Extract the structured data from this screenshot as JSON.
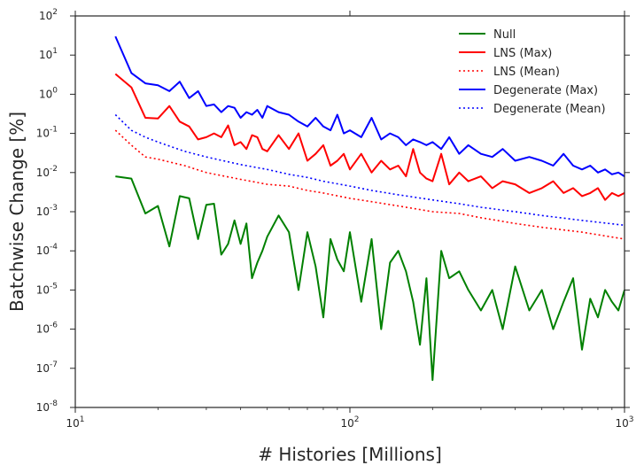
{
  "chart_data": {
    "type": "line",
    "xlabel": "# Histories [Millions]",
    "ylabel": "Batchwise Change [%]",
    "xscale": "log",
    "yscale": "log",
    "xlim": [
      10,
      1000
    ],
    "ylim": [
      1e-08,
      100
    ],
    "grid": false,
    "legend_position": "top-right",
    "x_ticks": [
      {
        "value": 10,
        "label": "10",
        "exp": "1"
      },
      {
        "value": 100,
        "label": "10",
        "exp": "2"
      },
      {
        "value": 1000,
        "label": "10",
        "exp": "3"
      }
    ],
    "y_ticks": [
      {
        "value": 1e-08,
        "label": "10",
        "exp": "-8"
      },
      {
        "value": 1e-07,
        "label": "10",
        "exp": "-7"
      },
      {
        "value": 1e-06,
        "label": "10",
        "exp": "-6"
      },
      {
        "value": 1e-05,
        "label": "10",
        "exp": "-5"
      },
      {
        "value": 0.0001,
        "label": "10",
        "exp": "-4"
      },
      {
        "value": 0.001,
        "label": "10",
        "exp": "-3"
      },
      {
        "value": 0.01,
        "label": "10",
        "exp": "-2"
      },
      {
        "value": 0.1,
        "label": "10",
        "exp": "-1"
      },
      {
        "value": 1,
        "label": "10",
        "exp": "0"
      },
      {
        "value": 10,
        "label": "10",
        "exp": "1"
      },
      {
        "value": 100,
        "label": "10",
        "exp": "2"
      }
    ],
    "series": [
      {
        "name": "Null",
        "color": "#008000",
        "style": "solid",
        "x": [
          14,
          16,
          18,
          20,
          22,
          24,
          26,
          28,
          30,
          32,
          34,
          36,
          38,
          40,
          42,
          44,
          46,
          48,
          50,
          55,
          60,
          65,
          70,
          75,
          80,
          85,
          90,
          95,
          100,
          110,
          120,
          130,
          140,
          150,
          160,
          170,
          180,
          190,
          200,
          215,
          230,
          250,
          270,
          300,
          330,
          360,
          400,
          450,
          500,
          550,
          600,
          650,
          700,
          750,
          800,
          850,
          900,
          950,
          1000
        ],
        "y": [
          0.008,
          0.007,
          0.0009,
          0.0014,
          0.00013,
          0.0025,
          0.0022,
          0.0002,
          0.0015,
          0.0016,
          8e-05,
          0.00015,
          0.0006,
          0.00015,
          0.0005,
          2e-05,
          5e-05,
          0.0001,
          0.00023,
          0.0008,
          0.0003,
          1e-05,
          0.0003,
          4e-05,
          2e-06,
          0.0002,
          6e-05,
          3e-05,
          0.0003,
          5e-06,
          0.0002,
          1e-06,
          5e-05,
          0.0001,
          3e-05,
          5e-06,
          4e-07,
          2e-05,
          5e-08,
          0.0001,
          2e-05,
          3e-05,
          1e-05,
          3e-06,
          1e-05,
          1e-06,
          4e-05,
          3e-06,
          1e-05,
          1e-06,
          5e-06,
          2e-05,
          3e-07,
          6e-06,
          2e-06,
          1e-05,
          5e-06,
          3e-06,
          1e-05
        ]
      },
      {
        "name": "LNS (Max)",
        "color": "#ff0000",
        "style": "solid",
        "x": [
          14,
          16,
          18,
          20,
          22,
          24,
          26,
          28,
          30,
          32,
          34,
          36,
          38,
          40,
          42,
          44,
          46,
          48,
          50,
          55,
          60,
          65,
          70,
          75,
          80,
          85,
          90,
          95,
          100,
          110,
          120,
          130,
          140,
          150,
          160,
          170,
          180,
          190,
          200,
          215,
          230,
          250,
          270,
          300,
          330,
          360,
          400,
          450,
          500,
          550,
          600,
          650,
          700,
          750,
          800,
          850,
          900,
          950,
          1000
        ],
        "y": [
          3.3,
          1.5,
          0.25,
          0.24,
          0.5,
          0.2,
          0.15,
          0.07,
          0.08,
          0.1,
          0.08,
          0.16,
          0.05,
          0.06,
          0.04,
          0.09,
          0.08,
          0.04,
          0.035,
          0.09,
          0.04,
          0.1,
          0.02,
          0.03,
          0.05,
          0.015,
          0.02,
          0.03,
          0.012,
          0.03,
          0.01,
          0.02,
          0.012,
          0.015,
          0.008,
          0.04,
          0.01,
          0.007,
          0.006,
          0.03,
          0.005,
          0.01,
          0.006,
          0.008,
          0.004,
          0.006,
          0.005,
          0.003,
          0.004,
          0.006,
          0.003,
          0.004,
          0.0025,
          0.003,
          0.004,
          0.002,
          0.003,
          0.0025,
          0.003
        ]
      },
      {
        "name": "LNS (Mean)",
        "color": "#ff0000",
        "style": "dotted",
        "x": [
          14,
          16,
          18,
          20,
          25,
          30,
          40,
          50,
          60,
          70,
          80,
          100,
          120,
          150,
          200,
          250,
          300,
          400,
          500,
          700,
          1000
        ],
        "y": [
          0.12,
          0.05,
          0.025,
          0.022,
          0.015,
          0.01,
          0.0067,
          0.005,
          0.0045,
          0.0035,
          0.003,
          0.0022,
          0.0018,
          0.0014,
          0.001,
          0.0009,
          0.0007,
          0.0005,
          0.0004,
          0.0003,
          0.0002
        ]
      },
      {
        "name": "Degenerate (Max)",
        "color": "#0000ff",
        "style": "solid",
        "x": [
          14,
          16,
          18,
          20,
          22,
          24,
          26,
          28,
          30,
          32,
          34,
          36,
          38,
          40,
          42,
          44,
          46,
          48,
          50,
          55,
          60,
          65,
          70,
          75,
          80,
          85,
          90,
          95,
          100,
          110,
          120,
          130,
          140,
          150,
          160,
          170,
          180,
          190,
          200,
          215,
          230,
          250,
          270,
          300,
          330,
          360,
          400,
          450,
          500,
          550,
          600,
          650,
          700,
          750,
          800,
          850,
          900,
          950,
          1000
        ],
        "y": [
          30,
          3.5,
          1.9,
          1.7,
          1.2,
          2.1,
          0.8,
          1.2,
          0.5,
          0.55,
          0.35,
          0.5,
          0.45,
          0.25,
          0.35,
          0.3,
          0.4,
          0.25,
          0.5,
          0.35,
          0.3,
          0.2,
          0.15,
          0.25,
          0.15,
          0.12,
          0.3,
          0.1,
          0.12,
          0.08,
          0.25,
          0.07,
          0.1,
          0.08,
          0.05,
          0.07,
          0.06,
          0.05,
          0.06,
          0.04,
          0.08,
          0.03,
          0.05,
          0.03,
          0.025,
          0.04,
          0.02,
          0.025,
          0.02,
          0.015,
          0.03,
          0.015,
          0.012,
          0.015,
          0.01,
          0.012,
          0.009,
          0.01,
          0.008
        ]
      },
      {
        "name": "Degenerate (Mean)",
        "color": "#0000ff",
        "style": "dotted",
        "x": [
          14,
          16,
          18,
          20,
          25,
          30,
          40,
          50,
          60,
          70,
          80,
          100,
          120,
          150,
          200,
          250,
          300,
          400,
          500,
          700,
          1000
        ],
        "y": [
          0.3,
          0.12,
          0.08,
          0.06,
          0.035,
          0.025,
          0.016,
          0.012,
          0.009,
          0.0075,
          0.006,
          0.0045,
          0.0035,
          0.0027,
          0.002,
          0.0016,
          0.0013,
          0.001,
          0.0008,
          0.0006,
          0.00045
        ]
      }
    ]
  }
}
